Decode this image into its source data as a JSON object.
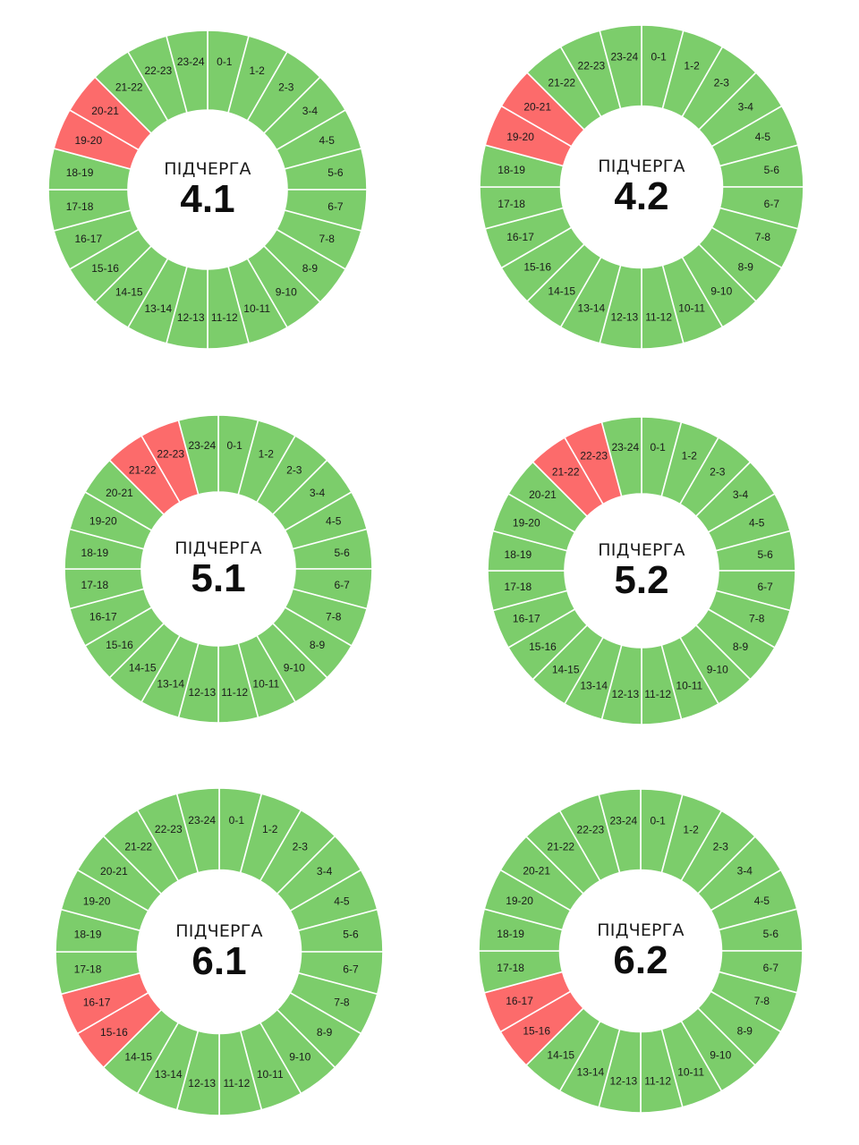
{
  "colors": {
    "on": "#7ccd6b",
    "off": "#fc6b6b",
    "separator": "#ffffff"
  },
  "hours": [
    "0-1",
    "1-2",
    "2-3",
    "3-4",
    "4-5",
    "5-6",
    "6-7",
    "7-8",
    "8-9",
    "9-10",
    "10-11",
    "11-12",
    "12-13",
    "13-14",
    "14-15",
    "15-16",
    "16-17",
    "17-18",
    "18-19",
    "19-20",
    "20-21",
    "21-22",
    "22-23",
    "23-24"
  ],
  "wheels": [
    {
      "label": "ПІДЧЕРГА",
      "number": "4.1",
      "outage_hours": [
        19,
        20
      ]
    },
    {
      "label": "ПІДЧЕРГА",
      "number": "4.2",
      "outage_hours": [
        19,
        20
      ]
    },
    {
      "label": "ПІДЧЕРГА",
      "number": "5.1",
      "outage_hours": [
        21,
        22
      ]
    },
    {
      "label": "ПІДЧЕРГА",
      "number": "5.2",
      "outage_hours": [
        21,
        22
      ]
    },
    {
      "label": "ПІДЧЕРГА",
      "number": "6.1",
      "outage_hours": [
        15,
        16
      ]
    },
    {
      "label": "ПІДЧЕРГА",
      "number": "6.2",
      "outage_hours": [
        15,
        16
      ]
    }
  ]
}
